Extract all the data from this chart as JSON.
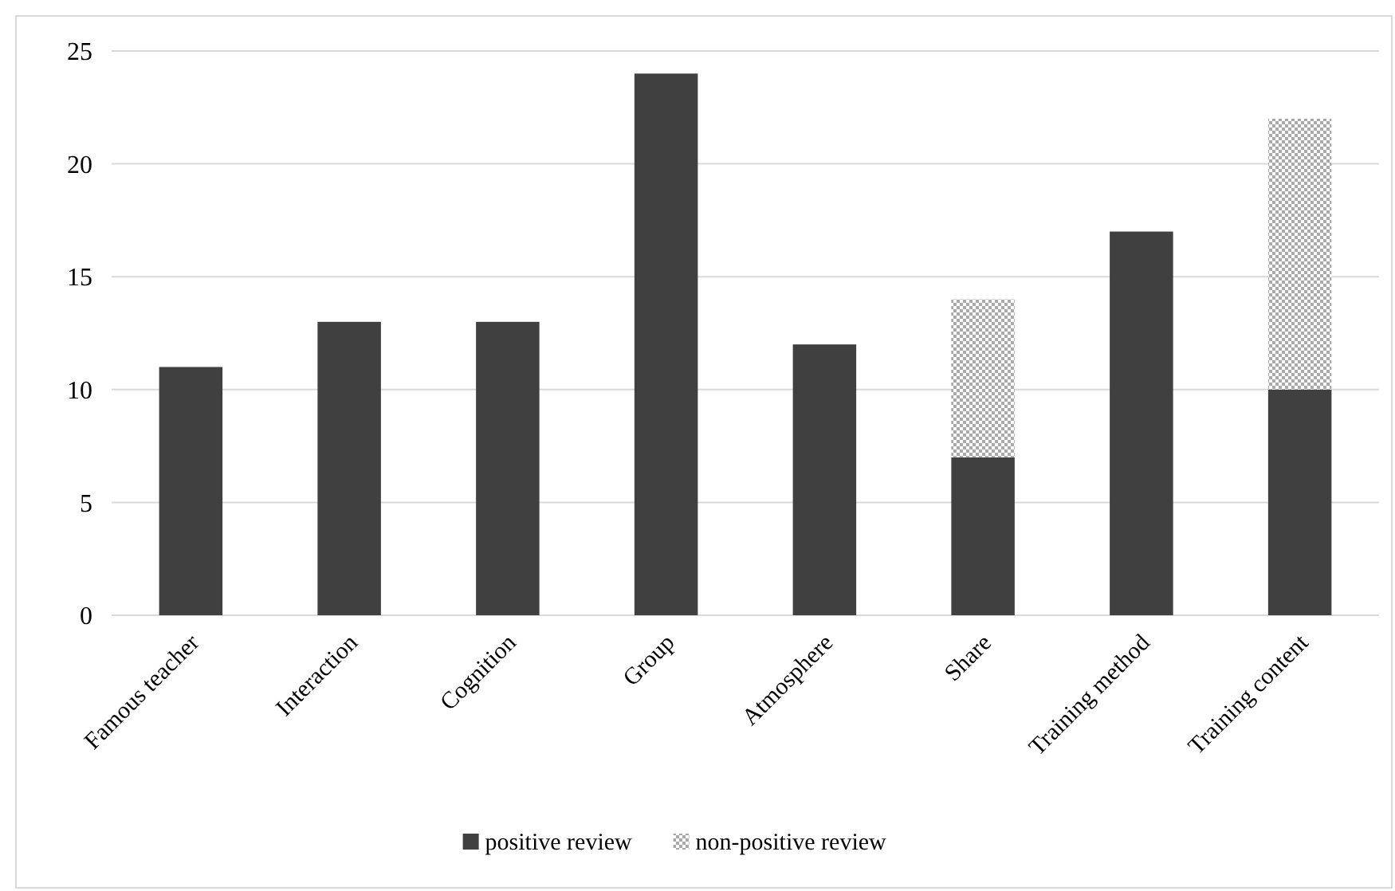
{
  "chart_data": {
    "type": "bar",
    "stacked": true,
    "categories": [
      "Famous teacher",
      "Interaction",
      "Cognition",
      "Group",
      "Atmosphere",
      "Share",
      "Training method",
      "Training content"
    ],
    "series": [
      {
        "name": "positive review",
        "color": "#404040",
        "values": [
          11,
          13,
          13,
          24,
          12,
          7,
          17,
          10
        ]
      },
      {
        "name": "non-positive review",
        "color": "#a8a8a8",
        "values": [
          null,
          null,
          null,
          null,
          null,
          7,
          null,
          12
        ]
      }
    ],
    "ylim": [
      0,
      25
    ],
    "yticks": [
      0,
      5,
      10,
      15,
      20,
      25
    ],
    "grid": "y",
    "legend": "bottom"
  }
}
